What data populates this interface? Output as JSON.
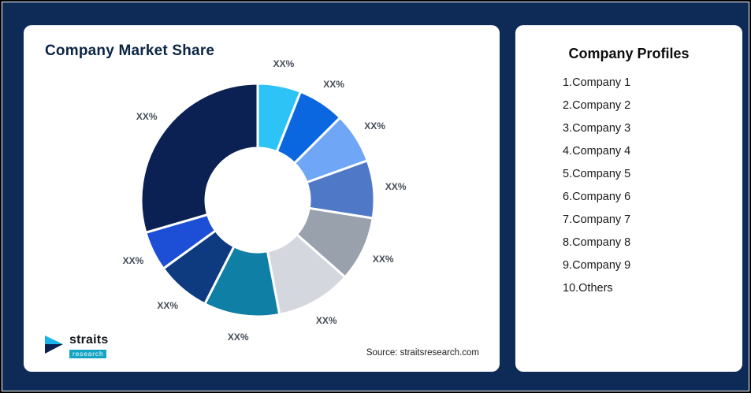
{
  "page": {
    "background_color": "#0E2A57",
    "card_color": "#FFFFFF"
  },
  "left_panel": {
    "title": "Company Market Share",
    "source": "Source: straitsresearch.com",
    "logo": {
      "brand": "straits",
      "sub": "research"
    }
  },
  "right_panel": {
    "title": "Company Profiles",
    "companies": [
      "1.Company 1",
      "2.Company 2",
      "3.Company 3",
      "4.Company 4",
      "5.Company 5",
      "6.Company 6",
      "7.Company 7",
      "8.Company 8",
      "9.Company 9",
      "10.Others"
    ]
  },
  "chart_data": {
    "type": "pie",
    "subtype": "donut",
    "title": "Company Market Share",
    "legend": "none",
    "value_labels_shown_as": "XX%",
    "note": "All slice labels display the placeholder 'XX%'; numeric values below are estimated from arc lengths, starting at 12 o'clock going clockwise",
    "segments": [
      {
        "name": "Company 1",
        "label": "XX%",
        "value": 6,
        "color": "#2EC3F7"
      },
      {
        "name": "Company 2",
        "label": "XX%",
        "value": 6.5,
        "color": "#0A67E0"
      },
      {
        "name": "Company 3",
        "label": "XX%",
        "value": 7,
        "color": "#6FA6F6"
      },
      {
        "name": "Company 4",
        "label": "XX%",
        "value": 8,
        "color": "#4F79C7"
      },
      {
        "name": "Company 5",
        "label": "XX%",
        "value": 9,
        "color": "#99A1AD"
      },
      {
        "name": "Company 6",
        "label": "XX%",
        "value": 10.5,
        "color": "#D4D8DE"
      },
      {
        "name": "Company 7",
        "label": "XX%",
        "value": 10.5,
        "color": "#0F7FA5"
      },
      {
        "name": "Company 8",
        "label": "XX%",
        "value": 7.5,
        "color": "#0E3A80"
      },
      {
        "name": "Company 9",
        "label": "XX%",
        "value": 5.5,
        "color": "#1D4FD6"
      },
      {
        "name": "Others",
        "label": "XX%",
        "value": 29.5,
        "color": "#0B2153"
      }
    ]
  }
}
